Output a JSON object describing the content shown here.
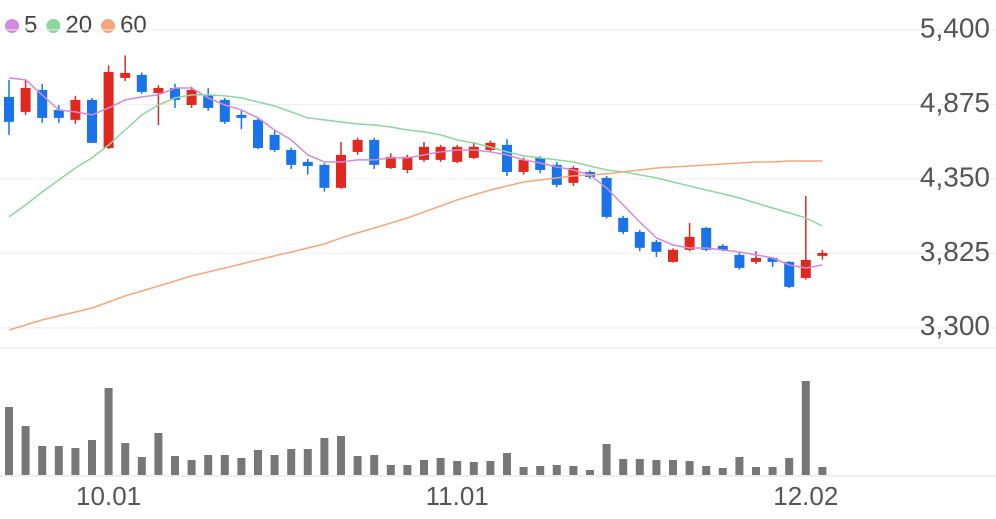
{
  "chart_data": {
    "type": "candlestick",
    "categories": [
      null,
      null,
      null,
      null,
      null,
      null,
      "10.01",
      null,
      null,
      null,
      null,
      null,
      null,
      null,
      null,
      null,
      null,
      null,
      null,
      null,
      null,
      null,
      null,
      null,
      null,
      null,
      null,
      "11.01",
      null,
      null,
      null,
      null,
      null,
      null,
      null,
      null,
      null,
      null,
      null,
      null,
      null,
      null,
      null,
      null,
      null,
      null,
      null,
      null,
      "12.02",
      null
    ],
    "open": [
      4928,
      4822,
      4977,
      4836,
      4766,
      4907,
      4568,
      5062,
      5083,
      4956,
      4991,
      4871,
      4942,
      4907,
      4801,
      4766,
      4660,
      4554,
      4470,
      4449,
      4287,
      4540,
      4625,
      4427,
      4413,
      4484,
      4484,
      4470,
      4498,
      4554,
      4590,
      4399,
      4498,
      4449,
      4322,
      4399,
      4357,
      4075,
      3976,
      3906,
      3765,
      3850,
      4005,
      3878,
      3814,
      3765,
      3793,
      3765,
      3652,
      3807
    ],
    "close": [
      4752,
      4991,
      4780,
      4780,
      4907,
      4604,
      5104,
      5097,
      4963,
      4991,
      4907,
      4977,
      4850,
      4752,
      4780,
      4568,
      4554,
      4449,
      4441,
      4287,
      4519,
      4625,
      4449,
      4505,
      4505,
      4576,
      4576,
      4576,
      4576,
      4604,
      4399,
      4484,
      4413,
      4308,
      4427,
      4364,
      4082,
      3976,
      3864,
      3836,
      3850,
      3941,
      3850,
      3850,
      3723,
      3793,
      3765,
      3589,
      3779,
      3828
    ],
    "high": [
      5048,
      5048,
      5020,
      4870,
      4935,
      4920,
      5150,
      5220,
      5100,
      5010,
      5020,
      5000,
      4990,
      4920,
      4830,
      4780,
      4690,
      4570,
      4490,
      4460,
      4610,
      4640,
      4640,
      4530,
      4520,
      4610,
      4590,
      4590,
      4610,
      4620,
      4630,
      4500,
      4510,
      4470,
      4440,
      4410,
      4370,
      4090,
      3990,
      3920,
      3860,
      4040,
      4010,
      3890,
      3830,
      3840,
      3800,
      3770,
      4230,
      3850
    ],
    "low": [
      4660,
      4801,
      4745,
      4745,
      4738,
      4604,
      4560,
      5040,
      4950,
      4730,
      4850,
      4850,
      4830,
      4738,
      4700,
      4560,
      4540,
      4420,
      4380,
      4260,
      4280,
      4520,
      4420,
      4420,
      4390,
      4470,
      4470,
      4460,
      4490,
      4540,
      4370,
      4380,
      4390,
      4290,
      4300,
      4350,
      4070,
      3960,
      3840,
      3800,
      3760,
      3840,
      3840,
      3840,
      3710,
      3750,
      3730,
      3580,
      3640,
      3780
    ],
    "up_color": "#e0281f",
    "down_color": "#1a73e8",
    "volume": [
      68,
      49,
      29,
      29,
      27,
      35,
      87,
      32,
      18,
      42,
      19,
      15,
      20,
      20,
      17,
      25,
      20,
      26,
      26,
      37,
      39,
      19,
      20,
      10,
      10,
      15,
      17,
      14,
      13,
      14,
      22,
      8,
      9,
      10,
      9,
      5,
      31,
      16,
      16,
      15,
      15,
      14,
      9,
      7,
      18,
      8,
      8,
      17,
      94,
      8
    ],
    "volume_color": "#777777",
    "series": [
      {
        "name": "5",
        "color": "#d08be0",
        "values": [
          5062,
          5048,
          4942,
          4836,
          4822,
          4801,
          4850,
          4907,
          4928,
          4942,
          4991,
          4991,
          4921,
          4871,
          4836,
          4780,
          4695,
          4625,
          4519,
          4469,
          4469,
          4484,
          4484,
          4498,
          4498,
          4519,
          4540,
          4554,
          4554,
          4540,
          4519,
          4484,
          4462,
          4434,
          4413,
          4378,
          4286,
          4166,
          4046,
          3934,
          3884,
          3863,
          3863,
          3849,
          3835,
          3814,
          3793,
          3743,
          3722,
          3743
        ]
      },
      {
        "name": "20",
        "color": "#8ed6a0",
        "values": [
          4082,
          4166,
          4258,
          4342,
          4427,
          4498,
          4589,
          4695,
          4801,
          4871,
          4921,
          4942,
          4942,
          4935,
          4921,
          4892,
          4864,
          4822,
          4780,
          4766,
          4751,
          4737,
          4730,
          4716,
          4695,
          4681,
          4660,
          4625,
          4603,
          4575,
          4540,
          4512,
          4498,
          4484,
          4469,
          4441,
          4413,
          4399,
          4378,
          4357,
          4328,
          4300,
          4272,
          4244,
          4215,
          4180,
          4145,
          4110,
          4075,
          4018
        ]
      },
      {
        "name": "60",
        "color": "#f4a77e",
        "values": [
          3285,
          3320,
          3356,
          3384,
          3412,
          3440,
          3482,
          3525,
          3560,
          3595,
          3630,
          3666,
          3694,
          3722,
          3750,
          3779,
          3807,
          3835,
          3863,
          3891,
          3934,
          3969,
          4004,
          4039,
          4075,
          4117,
          4159,
          4202,
          4237,
          4272,
          4300,
          4328,
          4342,
          4357,
          4371,
          4378,
          4385,
          4399,
          4413,
          4427,
          4434,
          4441,
          4448,
          4455,
          4462,
          4469,
          4469,
          4476,
          4476,
          4476
        ]
      }
    ],
    "ylim": [
      3158,
      5611
    ],
    "yticks": [
      {
        "value": 3300,
        "label": "3,300"
      },
      {
        "value": 3825,
        "label": "3,825"
      },
      {
        "value": 4350,
        "label": "4,350"
      },
      {
        "value": 4875,
        "label": "4,875"
      },
      {
        "value": 5400,
        "label": "5,400"
      }
    ],
    "grid": true
  }
}
